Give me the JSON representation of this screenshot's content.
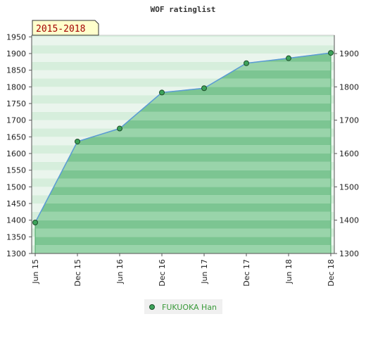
{
  "chart_data": {
    "type": "area",
    "title": "WOF ratinglist",
    "period_label": "2015-2018",
    "categories": [
      "Jun 15",
      "Dec 15",
      "Jun 16",
      "Dec 16",
      "Jun 17",
      "Dec 17",
      "Jun 18",
      "Dec 18"
    ],
    "series": [
      {
        "name": "FUKUOKA Han",
        "values": [
          1393,
          1636,
          1675,
          1783,
          1796,
          1871,
          1886,
          1902
        ]
      }
    ],
    "y_left_ticks": [
      1300,
      1350,
      1400,
      1450,
      1500,
      1550,
      1600,
      1650,
      1700,
      1750,
      1800,
      1850,
      1900,
      1950
    ],
    "y_right_ticks": [
      1300,
      1400,
      1500,
      1600,
      1700,
      1800,
      1900
    ],
    "ylim": [
      1300,
      1955
    ],
    "legend_position": "bottom-center",
    "grid": true,
    "colors": {
      "area_fill": "#5cb870",
      "line": "#5b9bd5",
      "marker": "#3da35a",
      "legend_text": "#3a9a3a",
      "period_text": "#a30000",
      "period_bg": "#ffffcc"
    }
  }
}
